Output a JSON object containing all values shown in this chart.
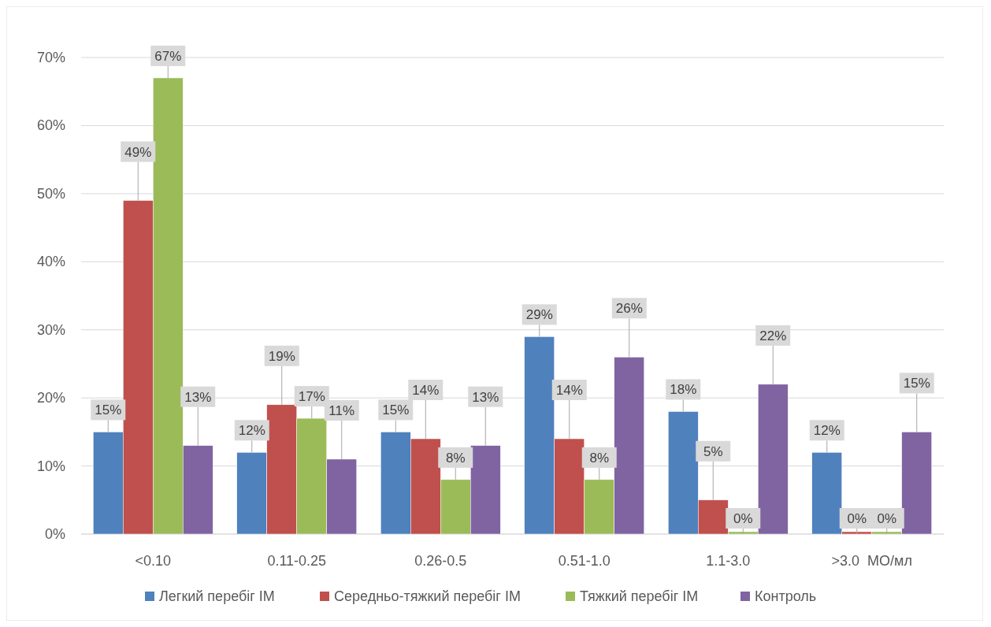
{
  "chart_data": {
    "type": "bar",
    "categories": [
      "<0.10",
      "0.11-0.25",
      "0.26-0.5",
      "0.51-1.0",
      "1.1-3.0",
      ">3.0  МО/мл"
    ],
    "series": [
      {
        "name": "Легкий перебіг ІМ",
        "color": "#4f81bd",
        "values": [
          15,
          12,
          15,
          29,
          18,
          12
        ],
        "value_labels": [
          "15%",
          "12%",
          "15%",
          "29%",
          "18%",
          "12%"
        ]
      },
      {
        "name": "Середньо-тяжкий перебіг ІМ",
        "color": "#c0504d",
        "values": [
          49,
          19,
          14,
          14,
          5,
          0
        ],
        "value_labels": [
          "49%",
          "19%",
          "14%",
          "14%",
          "5%",
          "0%"
        ]
      },
      {
        "name": "Тяжкий перебіг ІМ",
        "color": "#9bbb59",
        "values": [
          67,
          17,
          8,
          8,
          0,
          0
        ],
        "value_labels": [
          "67%",
          "17%",
          "8%",
          "8%",
          "0%",
          "0%"
        ]
      },
      {
        "name": "Контроль",
        "color": "#8064a2",
        "values": [
          13,
          11,
          13,
          26,
          22,
          15
        ],
        "value_labels": [
          "13%",
          "11%",
          "13%",
          "26%",
          "22%",
          "15%"
        ]
      }
    ],
    "ylim": [
      0,
      70
    ],
    "yticks": [
      {
        "value": 0,
        "label": "0%"
      },
      {
        "value": 10,
        "label": "10%"
      },
      {
        "value": 20,
        "label": "20%"
      },
      {
        "value": 30,
        "label": "30%"
      },
      {
        "value": 40,
        "label": "40%"
      },
      {
        "value": 50,
        "label": "50%"
      },
      {
        "value": 60,
        "label": "60%"
      },
      {
        "value": 70,
        "label": "70%"
      }
    ],
    "grid": "y",
    "legend": "bottom"
  }
}
